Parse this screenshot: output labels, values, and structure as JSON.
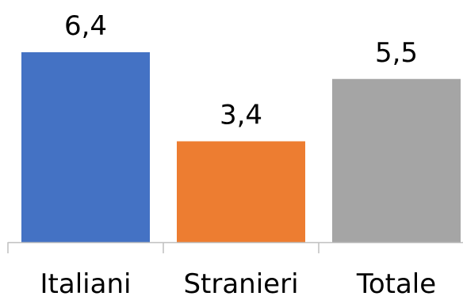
{
  "chart_data": {
    "type": "bar",
    "categories": [
      "Italiani",
      "Stranieri",
      "Totale"
    ],
    "values": [
      6.4,
      3.4,
      5.5
    ],
    "value_labels": [
      "6,4",
      "3,4",
      "5,5"
    ],
    "colors": [
      "#4472C4",
      "#ED7D31",
      "#A5A5A5"
    ],
    "title": "",
    "xlabel": "",
    "ylabel": "",
    "ylim": [
      0,
      6.4
    ],
    "grid": false,
    "legend": "none"
  }
}
